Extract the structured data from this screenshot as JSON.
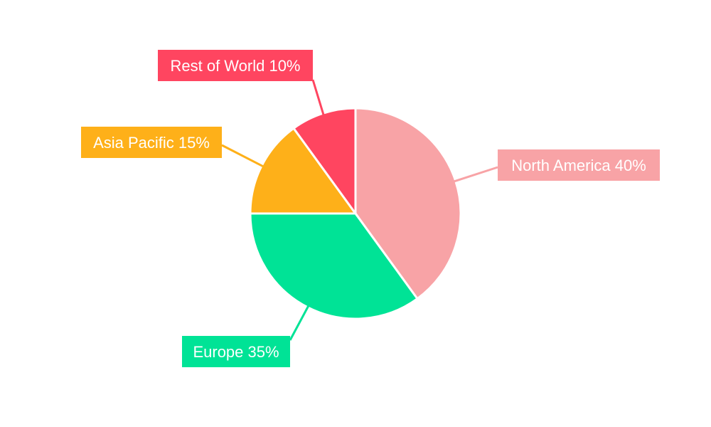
{
  "chart_data": {
    "type": "pie",
    "categories": [
      "North America",
      "Europe",
      "Asia Pacific",
      "Rest of World"
    ],
    "values": [
      40,
      35,
      15,
      10
    ],
    "labels": [
      "North America 40%",
      "Europe 35%",
      "Asia Pacific 15%",
      "Rest of World 10%"
    ],
    "colors": [
      "#F8A3A6",
      "#00E396",
      "#FEB019",
      "#FF4560"
    ],
    "start_angle": "top",
    "direction": "clockwise",
    "legend": "none"
  }
}
